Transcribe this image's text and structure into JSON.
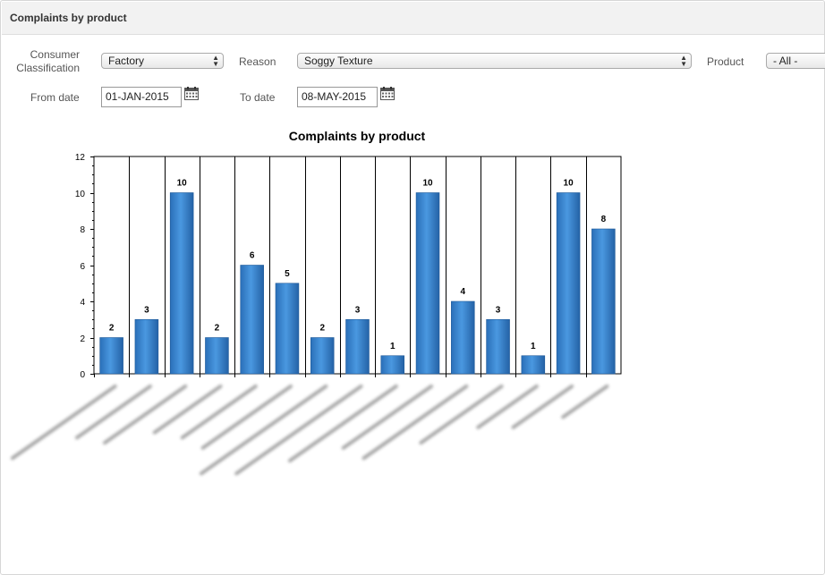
{
  "region": {
    "title": "Complaints by product"
  },
  "filters": {
    "classification_label_line1": "Consumer",
    "classification_label_line2": "Classification",
    "classification_value": "Factory",
    "reason_label": "Reason",
    "reason_value": "Soggy Texture",
    "product_label": "Product",
    "product_value": "- All -",
    "from_label": "From date",
    "from_value": "01-JAN-2015",
    "to_label": "To date",
    "to_value": "08-MAY-2015"
  },
  "icons": {
    "calendar": "calendar-icon",
    "select_caret": "up-down-caret-icon"
  },
  "chart_data": {
    "type": "bar",
    "title": "Complaints by product",
    "xlabel": "",
    "ylabel": "",
    "categories_note_blurred": true,
    "values": [
      2,
      3,
      10,
      2,
      6,
      5,
      2,
      3,
      1,
      10,
      4,
      3,
      1,
      10,
      8
    ],
    "ylim": [
      0,
      12
    ],
    "yticks": [
      0,
      2,
      4,
      6,
      8,
      10,
      12
    ],
    "bar_color": "#3a86d4",
    "grid": "vertical separators"
  }
}
